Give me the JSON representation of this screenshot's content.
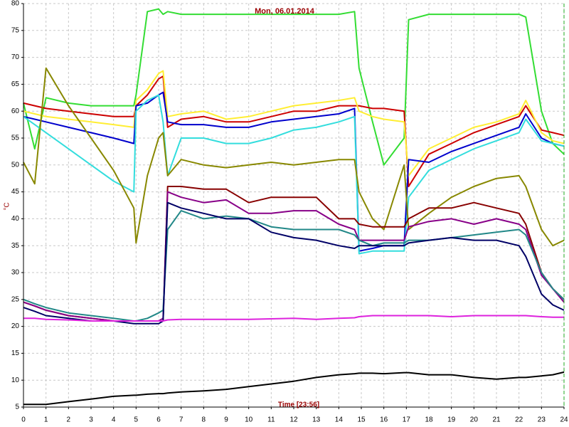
{
  "chart_data": {
    "type": "line",
    "title": "Mon, 06.01.2014",
    "xlabel": "Time [23:56]",
    "ylabel": "°C",
    "x": [
      0,
      0.5,
      1,
      2,
      3,
      4,
      4.9,
      5,
      5.5,
      6,
      6.2,
      6.4,
      7,
      8,
      9,
      10,
      11,
      12,
      13,
      14,
      14.7,
      14.9,
      15.5,
      16,
      16.9,
      17.1,
      18,
      19,
      20,
      21,
      22,
      22.3,
      23,
      23.5,
      24
    ],
    "xlim": [
      0,
      24
    ],
    "xticks": [
      0,
      1,
      2,
      3,
      4,
      5,
      6,
      7,
      8,
      9,
      10,
      11,
      12,
      13,
      14,
      15,
      16,
      17,
      18,
      19,
      20,
      21,
      22,
      23,
      24
    ],
    "ylim": [
      5,
      80
    ],
    "yticks": [
      5,
      10,
      15,
      20,
      25,
      30,
      35,
      40,
      45,
      50,
      55,
      60,
      65,
      70,
      75,
      80
    ],
    "grid": true,
    "series": [
      {
        "color": "#33dd33",
        "values": [
          61.5,
          53,
          62.5,
          61.5,
          61,
          61,
          61,
          63,
          78.5,
          79,
          78,
          78.5,
          78,
          78,
          78,
          78,
          78,
          78,
          78,
          78,
          78.5,
          68,
          58,
          50,
          55,
          77,
          78,
          78,
          78,
          78,
          78,
          77.5,
          60,
          54,
          52
        ]
      },
      {
        "color": "#cc0000",
        "values": [
          61.5,
          61,
          60.5,
          60,
          59.5,
          59,
          59,
          61,
          63,
          66,
          66.5,
          57,
          58.5,
          59,
          58,
          58,
          59,
          60,
          60,
          61,
          61,
          61,
          60.5,
          60.5,
          60,
          46,
          52,
          54,
          56,
          57.5,
          59,
          61,
          56.5,
          56,
          55.5
        ]
      },
      {
        "color": "#ffee33",
        "values": [
          60,
          59.5,
          59,
          58.5,
          58,
          57.5,
          57,
          62,
          64,
          67,
          67.5,
          59,
          59.5,
          60,
          58.5,
          59,
          60,
          61,
          61.5,
          62,
          62.5,
          60,
          59,
          58.5,
          58,
          48,
          53,
          55,
          57,
          58,
          59.5,
          62,
          56,
          54.5,
          54
        ]
      },
      {
        "color": "#0000cc",
        "values": [
          59,
          58.5,
          58,
          57,
          56,
          55,
          54,
          61,
          61.5,
          63,
          63.5,
          58,
          57.5,
          57.5,
          57,
          57,
          58,
          58.5,
          59,
          59.5,
          60.5,
          34,
          34.5,
          35,
          35,
          51,
          50.5,
          52.5,
          54,
          55.5,
          57,
          59.5,
          55,
          54,
          53.5
        ]
      },
      {
        "color": "#33dddd",
        "values": [
          59,
          57.5,
          56,
          53,
          50,
          47,
          45,
          60,
          62,
          63,
          58,
          48,
          55,
          55,
          54,
          54,
          55,
          56.5,
          57,
          58,
          59,
          33.5,
          34,
          34,
          34,
          44,
          49,
          51,
          53,
          54.5,
          56,
          58.5,
          54.5,
          54,
          53.5
        ]
      },
      {
        "color": "#888800",
        "values": [
          50.5,
          46.5,
          68,
          61,
          55,
          49,
          42,
          35.5,
          48,
          55,
          56,
          48,
          51,
          50,
          49.5,
          50,
          50.5,
          50,
          50.5,
          51,
          51,
          45,
          40,
          38,
          50,
          38,
          41,
          44,
          46,
          47.5,
          48,
          46,
          38,
          35,
          36
        ]
      },
      {
        "color": "#880000",
        "values": [
          24.5,
          23.8,
          23,
          22,
          21.5,
          21,
          21,
          21,
          21,
          21,
          21,
          46,
          46,
          45.5,
          45.5,
          43,
          44,
          44,
          44,
          40,
          40,
          39,
          38.5,
          38.5,
          38.5,
          40,
          42,
          42,
          43,
          42,
          41,
          39,
          30,
          27,
          25
        ]
      },
      {
        "color": "#880088",
        "values": [
          24.5,
          23.8,
          23,
          22,
          21.5,
          21,
          21,
          21,
          21,
          21,
          21.5,
          45,
          44,
          43,
          43.5,
          41,
          41,
          41.5,
          41.5,
          39,
          38,
          36,
          36,
          36,
          36,
          38.5,
          39.5,
          40,
          39,
          40,
          39,
          38,
          29.5,
          27,
          24.5
        ]
      },
      {
        "color": "#228888",
        "values": [
          25,
          24.2,
          23.5,
          22.5,
          22,
          21.5,
          21,
          21,
          21.5,
          22.5,
          23,
          38,
          41.5,
          40,
          40.5,
          40,
          38.5,
          38,
          38,
          38,
          37,
          36,
          35,
          35.5,
          35.5,
          36,
          36,
          36.5,
          37,
          37.5,
          38,
          37,
          30,
          27,
          25
        ]
      },
      {
        "color": "#000066",
        "values": [
          23.5,
          22.8,
          22,
          21.5,
          21,
          21,
          20.5,
          20.5,
          20.5,
          20.5,
          21,
          43,
          42,
          41,
          40,
          40,
          37.5,
          36.5,
          36,
          35,
          34.5,
          35,
          35,
          35,
          35,
          35.5,
          36,
          36.5,
          36,
          36,
          35,
          33,
          26,
          24,
          23
        ]
      },
      {
        "color": "#dd22dd",
        "values": [
          21.5,
          21.5,
          21.3,
          21.2,
          21,
          21,
          21,
          21,
          21,
          21,
          21,
          21.2,
          21.3,
          21.3,
          21.3,
          21.3,
          21.4,
          21.5,
          21.3,
          21.5,
          21.6,
          21.8,
          22,
          22,
          22,
          22,
          22,
          21.8,
          22,
          22,
          22,
          22,
          21.8,
          21.7,
          21.7
        ]
      },
      {
        "color": "#000000",
        "values": [
          5.5,
          5.5,
          5.5,
          6,
          6.5,
          7,
          7.2,
          7.2,
          7.4,
          7.5,
          7.5,
          7.6,
          7.8,
          8,
          8.3,
          8.8,
          9.3,
          9.8,
          10.5,
          11,
          11.2,
          11.3,
          11.3,
          11.2,
          11.4,
          11.4,
          11,
          11,
          10.5,
          10.2,
          10.5,
          10.5,
          10.8,
          11,
          11.5
        ]
      }
    ]
  }
}
